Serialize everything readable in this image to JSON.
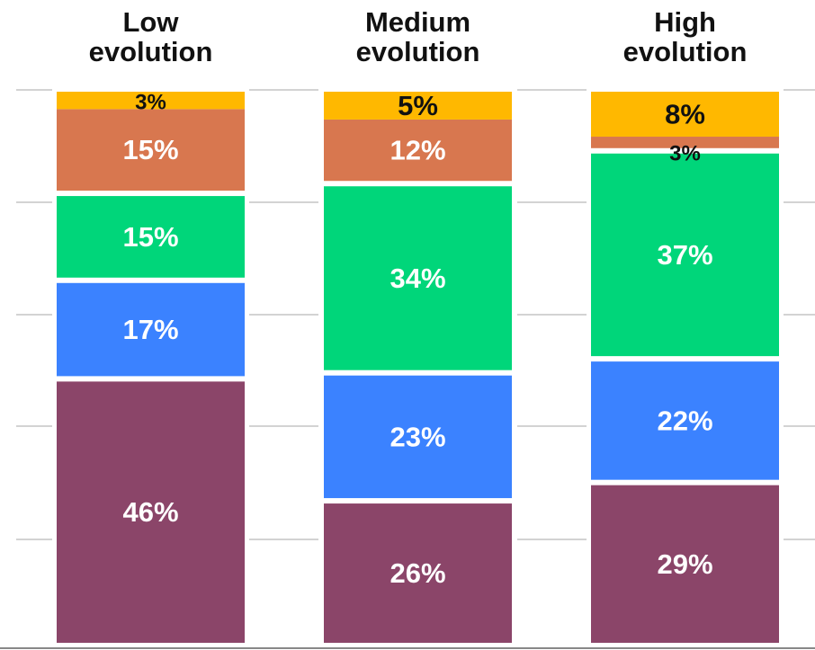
{
  "chart_data": {
    "type": "bar",
    "stacked": true,
    "normalized": true,
    "categories": [
      "Low evolution",
      "Medium evolution",
      "High evolution"
    ],
    "category_title_lines": [
      [
        "Low",
        "evolution"
      ],
      [
        "Medium",
        "evolution"
      ],
      [
        "High",
        "evolution"
      ]
    ],
    "series": [
      {
        "color": "#8B4569",
        "values": [
          46,
          26,
          29
        ],
        "labels": [
          "46%",
          "26%",
          "29%"
        ]
      },
      {
        "color": "#3B82FF",
        "values": [
          17,
          23,
          22
        ],
        "labels": [
          "17%",
          "23%",
          "22%"
        ]
      },
      {
        "color": "#00D67A",
        "values": [
          15,
          34,
          37
        ],
        "labels": [
          "15%",
          "34%",
          "37%"
        ]
      },
      {
        "color": "#D8774F",
        "values": [
          15,
          12,
          3
        ],
        "labels": [
          "15%",
          "12%",
          "3%"
        ]
      },
      {
        "color": "#FFB800",
        "values": [
          3,
          5,
          8
        ],
        "labels": [
          "3%",
          "5%",
          "8%"
        ]
      }
    ],
    "label_colors": [
      "#ffffff",
      "#ffffff",
      "#ffffff",
      "#ffffff",
      "#111111"
    ],
    "small_label_color": "#111111",
    "ylim": [
      0,
      100
    ],
    "grid": true,
    "legend": "none",
    "xlabel": "",
    "ylabel": ""
  }
}
